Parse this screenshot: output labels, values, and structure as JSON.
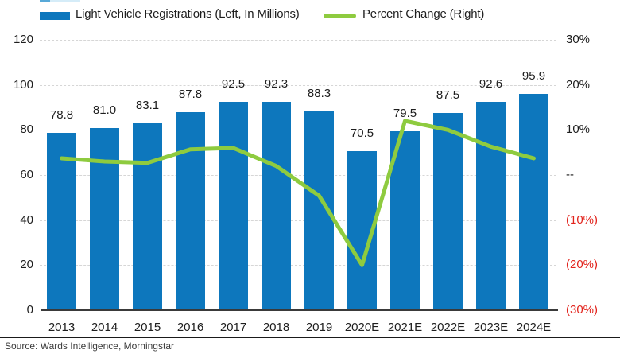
{
  "legend": {
    "items": [
      {
        "label": "Light Vehicle Registrations (Left, In Millions)",
        "swatch_color": "#0d77bd",
        "type": "bar"
      },
      {
        "label": "Percent Change (Right)",
        "swatch_color": "#8ecb3f",
        "type": "line"
      }
    ]
  },
  "chart_data": {
    "type": "combo-bar-line",
    "categories": [
      "2013",
      "2014",
      "2015",
      "2016",
      "2017",
      "2018",
      "2019",
      "2020E",
      "2021E",
      "2022E",
      "2023E",
      "2024E"
    ],
    "series": [
      {
        "name": "Light Vehicle Registrations (Left, In Millions)",
        "type": "bar",
        "axis": "left",
        "color": "#0d77bd",
        "values": [
          78.8,
          81.0,
          83.1,
          87.8,
          92.5,
          92.3,
          88.3,
          70.5,
          79.5,
          87.5,
          92.6,
          95.9
        ],
        "labels": [
          "78.8",
          "81.0",
          "83.1",
          "87.8",
          "92.5",
          "92.3",
          "88.3",
          "70.5",
          "79.5",
          "87.5",
          "92.6",
          "95.9"
        ]
      },
      {
        "name": "Percent Change (Right)",
        "type": "line",
        "axis": "right",
        "color": "#8ecb3f",
        "values": [
          3.7,
          3.0,
          2.7,
          5.7,
          6.0,
          2.0,
          -4.6,
          -20.0,
          12.0,
          10.0,
          6.3,
          3.7
        ]
      }
    ],
    "left_axis": {
      "min": 0,
      "max": 120,
      "ticks": [
        {
          "value": 120,
          "label": "120"
        },
        {
          "value": 100,
          "label": "100"
        },
        {
          "value": 80,
          "label": "80"
        },
        {
          "value": 60,
          "label": "60"
        },
        {
          "value": 40,
          "label": "40"
        },
        {
          "value": 20,
          "label": "20"
        },
        {
          "value": 0,
          "label": "0"
        }
      ]
    },
    "right_axis": {
      "min": -30,
      "max": 30,
      "negative_color": "#e2231c",
      "ticks": [
        {
          "value": 30,
          "label": "30%",
          "color": "#1e1e1e"
        },
        {
          "value": 20,
          "label": "20%",
          "color": "#1e1e1e"
        },
        {
          "value": 10,
          "label": "10%",
          "color": "#1e1e1e"
        },
        {
          "value": 0,
          "label": "--",
          "color": "#1e1e1e"
        },
        {
          "value": -10,
          "label": "(10%)",
          "color": "#e2231c"
        },
        {
          "value": -20,
          "label": "(20%)",
          "color": "#e2231c"
        },
        {
          "value": -30,
          "label": "(30%)",
          "color": "#e2231c"
        }
      ]
    },
    "grid": {
      "style": "dashed",
      "color": "#d6d6d6",
      "orientation": "horizontal"
    },
    "legend_position": "top"
  },
  "source": "Source: Wards Intelligence, Morningstar"
}
